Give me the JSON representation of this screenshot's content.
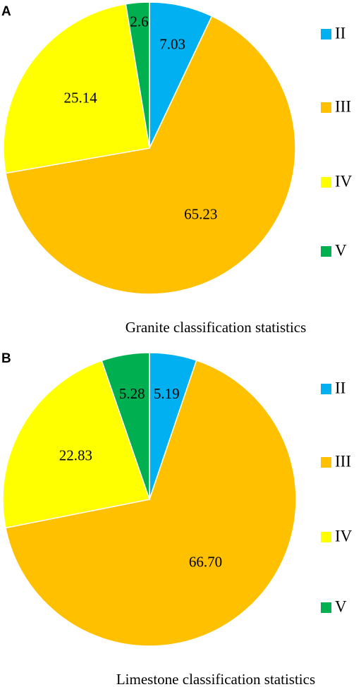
{
  "chart_data": [
    {
      "type": "pie",
      "panel": "A",
      "caption": "Granite classification statistics",
      "slices": [
        {
          "label": "II",
          "value": 7.03,
          "value_label": "7.03",
          "color": "#00b0f0"
        },
        {
          "label": "III",
          "value": 65.23,
          "value_label": "65.23",
          "color": "#ffc000"
        },
        {
          "label": "IV",
          "value": 25.14,
          "value_label": "25.14",
          "color": "#ffff00"
        },
        {
          "label": "V",
          "value": 2.6,
          "value_label": "2.6",
          "color": "#00b050"
        }
      ],
      "start_angle_deg": 0,
      "direction": "clockwise",
      "legend_position": "right"
    },
    {
      "type": "pie",
      "panel": "B",
      "caption": "Limestone classification statistics",
      "slices": [
        {
          "label": "II",
          "value": 5.19,
          "value_label": "5.19",
          "color": "#00b0f0"
        },
        {
          "label": "III",
          "value": 66.7,
          "value_label": "66.70",
          "color": "#ffc000"
        },
        {
          "label": "IV",
          "value": 22.83,
          "value_label": "22.83",
          "color": "#ffff00"
        },
        {
          "label": "V",
          "value": 5.28,
          "value_label": "5.28",
          "color": "#00b050"
        }
      ],
      "start_angle_deg": 0,
      "direction": "clockwise",
      "legend_position": "right"
    }
  ]
}
